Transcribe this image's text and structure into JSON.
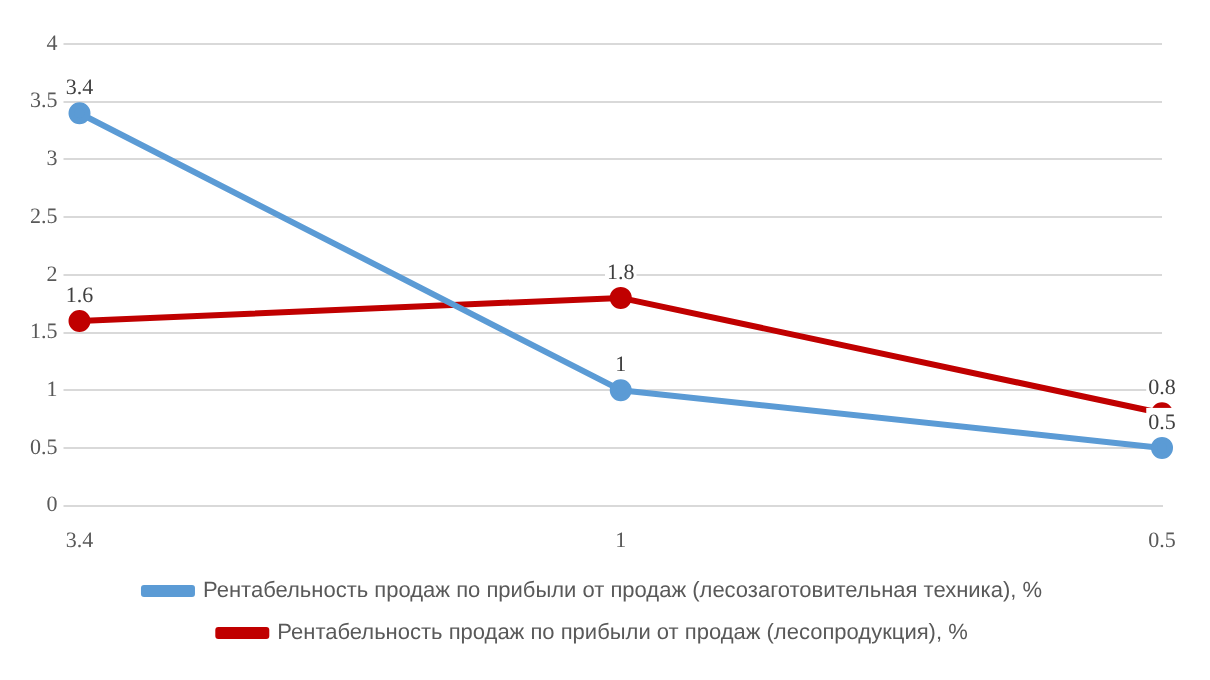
{
  "chart_data": {
    "type": "line",
    "categories": [
      "3.4",
      "1",
      "0.5"
    ],
    "series": [
      {
        "name": "Рентабельность продаж по прибыли от продаж (лесозаготовительная техника), %",
        "color": "#5b9bd5",
        "values": [
          3.4,
          1,
          0.5
        ]
      },
      {
        "name": "Рентабельность продаж по прибыли от продаж (лесопродукция), %",
        "color": "#c00000",
        "values": [
          1.6,
          1.8,
          0.8
        ]
      }
    ],
    "ylim": [
      0,
      4
    ],
    "yticks": [
      0,
      0.5,
      1,
      1.5,
      2,
      2.5,
      3,
      3.5,
      4
    ],
    "grid": "y",
    "legend": "bottom",
    "marker": "circle",
    "line_style": "solid",
    "data_labels": true
  }
}
